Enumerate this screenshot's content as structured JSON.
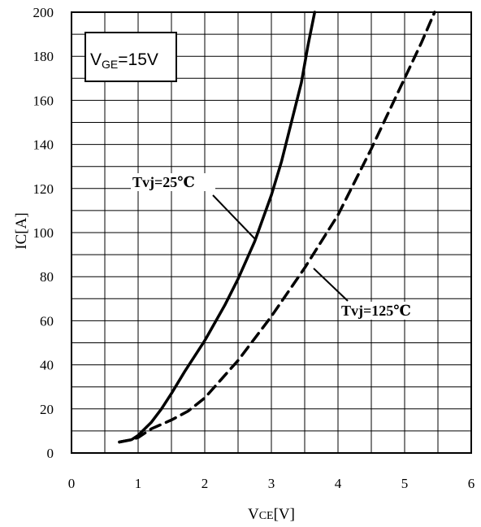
{
  "chart_data": {
    "type": "line",
    "xlabel": {
      "main": "V",
      "sub": "CE",
      "unit": "[V]"
    },
    "ylabel": "IC[A]",
    "xlim": [
      0,
      6
    ],
    "ylim": [
      0,
      200
    ],
    "x_ticks": [
      0,
      1,
      2,
      3,
      4,
      5,
      6
    ],
    "y_ticks": [
      0,
      20,
      40,
      60,
      80,
      100,
      120,
      140,
      160,
      180,
      200
    ],
    "grid": true,
    "legend_box": {
      "main": "V",
      "sub": "GE",
      "rest": "=15V",
      "placement": "top-left"
    },
    "series": [
      {
        "name": "Tvj=25℃",
        "style": "solid",
        "color": "#000000",
        "x": [
          0.72,
          0.9,
          1.0,
          1.1,
          1.2,
          1.35,
          1.5,
          1.7,
          2.0,
          2.3,
          2.5,
          2.75,
          3.0,
          3.15,
          3.3,
          3.45,
          3.55,
          3.65
        ],
        "y": [
          5,
          6,
          8,
          11,
          14,
          20,
          27,
          37,
          51,
          67,
          79,
          96,
          117,
          132,
          150,
          168,
          185,
          200
        ]
      },
      {
        "name": "Tvj=125℃",
        "style": "dashed",
        "color": "#000000",
        "x": [
          0.72,
          0.9,
          1.0,
          1.2,
          1.5,
          1.75,
          2.0,
          2.5,
          3.0,
          3.5,
          4.0,
          4.5,
          5.0,
          5.25,
          5.45
        ],
        "y": [
          5,
          6,
          7,
          11,
          15,
          19,
          25,
          42,
          62,
          84,
          108,
          138,
          170,
          186,
          200
        ]
      }
    ],
    "annotations": [
      {
        "text": "Tvj=25℃",
        "series": 0
      },
      {
        "text": "Tvj=125℃",
        "series": 1
      }
    ]
  }
}
